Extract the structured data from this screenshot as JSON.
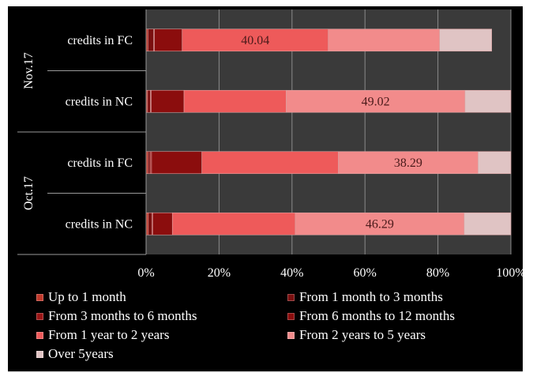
{
  "chart_data": {
    "type": "bar",
    "orientation": "horizontal",
    "stacked": "percent",
    "xlim": [
      0,
      100
    ],
    "x_ticks": [
      "0%",
      "20%",
      "40%",
      "60%",
      "80%",
      "100%"
    ],
    "groups": [
      {
        "label": "Nov.17",
        "rows": [
          "credits in FC",
          "credits in NC"
        ]
      },
      {
        "label": "Oct.17",
        "rows": [
          "credits in FC",
          "credits in NC"
        ]
      }
    ],
    "categories": [
      "credits in FC",
      "credits in NC",
      "credits in FC",
      "credits in NC"
    ],
    "series": [
      {
        "name": "Up to 1 month",
        "color": "#c0392b",
        "values": [
          0.5,
          0.4,
          0.5,
          0.6
        ]
      },
      {
        "name": "From 1 month to 3 months",
        "color": "#7a0f0f",
        "values": [
          1.6,
          0.8,
          0.6,
          1.0
        ]
      },
      {
        "name": "From 3 months to 6 months",
        "color": "#9b1616",
        "values": [
          0.2,
          0.2,
          0.4,
          0.2
        ]
      },
      {
        "name": "From 6 months to 12 months",
        "color": "#8b0d0d",
        "values": [
          7.6,
          9.0,
          13.8,
          5.4
        ]
      },
      {
        "name": "From 1 year to 2 years",
        "color": "#ee5a5a",
        "values": [
          40.04,
          28.0,
          37.4,
          33.7
        ]
      },
      {
        "name": "From 2 years to 5 years",
        "color": "#f28b8b",
        "values": [
          30.5,
          49.02,
          38.29,
          46.29
        ]
      },
      {
        "name": "Over 5years",
        "color": "#e0c4c4",
        "values": [
          14.3,
          12.58,
          9.01,
          12.81
        ]
      }
    ],
    "data_labels": [
      {
        "row": 0,
        "text": "40.04",
        "series": 4
      },
      {
        "row": 1,
        "text": "49.02",
        "series": 5
      },
      {
        "row": 2,
        "text": "38.29",
        "series": 5
      },
      {
        "row": 3,
        "text": "46.29",
        "series": 5
      }
    ],
    "legend": {
      "position": "bottom"
    },
    "grid": true,
    "background": "#000000",
    "plot_background": "#3a3a3a"
  }
}
